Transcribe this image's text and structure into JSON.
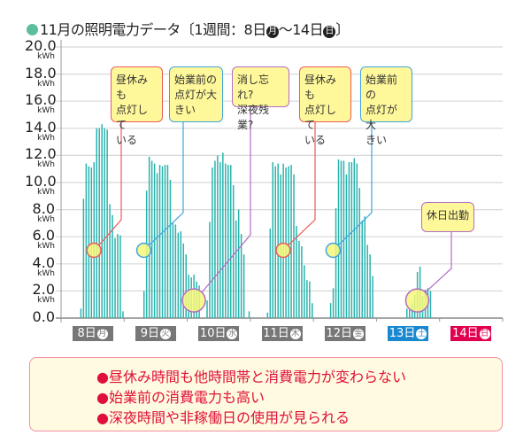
{
  "title": {
    "prefix": "11月の照明電力データ〔1週間：8日",
    "start_weekday": "月",
    "mid": "～14日",
    "end_weekday": "日",
    "suffix": "〕",
    "dot_color": "#5bbf9f"
  },
  "chart_data": {
    "type": "bar",
    "title": "11月の照明電力データ〔1週間：8日(月)～14日(日)〕",
    "ylabel": "",
    "yunit": "kWh",
    "ylim": [
      0,
      20
    ],
    "yticks": [
      "0.0",
      "2.0",
      "4.0",
      "6.0",
      "8.0",
      "10.0",
      "12.0",
      "14.0",
      "16.0",
      "18.0",
      "20.0"
    ],
    "grid": true,
    "bar_color": "#2ab3ad",
    "x_granularity": "hourly (24 bars per day)",
    "days": [
      {
        "label": "8日",
        "weekday": "月",
        "color": "#777777",
        "values": [
          0,
          0,
          0,
          0,
          0,
          0,
          0,
          0.7,
          8.8,
          11.4,
          11.2,
          11.1,
          11.5,
          14.0,
          14.0,
          14.3,
          14.0,
          13.9,
          8.4,
          7.6,
          5.9,
          6.2,
          6.1,
          0.5
        ]
      },
      {
        "label": "9日",
        "weekday": "火",
        "color": "#777777",
        "values": [
          0,
          0,
          0,
          0,
          0,
          0,
          0,
          2.0,
          9.4,
          11.9,
          11.6,
          11.4,
          10.7,
          11.3,
          11.2,
          11.3,
          11.3,
          10.2,
          7.0,
          6.9,
          6.3,
          6.4,
          5.5,
          4.7
        ]
      },
      {
        "label": "10日",
        "weekday": "水",
        "color": "#777777",
        "values": [
          3.2,
          3.0,
          3.2,
          2.7,
          2.4,
          0,
          0,
          1.3,
          7.1,
          11.1,
          11.6,
          12.0,
          11.5,
          12.2,
          11.4,
          11.3,
          11.3,
          9.8,
          7.2,
          8.0,
          6.2,
          4.7,
          0,
          0.5
        ]
      },
      {
        "label": "11日",
        "weekday": "木",
        "color": "#777777",
        "values": [
          0,
          0,
          0,
          0,
          0,
          0,
          0.4,
          6.6,
          11.5,
          11.2,
          11.4,
          10.6,
          11.4,
          11.1,
          11.2,
          11.3,
          10.6,
          6.8,
          5.7,
          5.3,
          3.9,
          2.8,
          2.7,
          1.1
        ]
      },
      {
        "label": "12日",
        "weekday": "金",
        "color": "#777777",
        "values": [
          0,
          0,
          0,
          0,
          0,
          0,
          1.1,
          2.2,
          8.1,
          11.7,
          11.6,
          11.6,
          10.6,
          11.5,
          11.5,
          11.8,
          11.4,
          9.6,
          7.2,
          7.5,
          5.4,
          4.7,
          3.1,
          0
        ]
      },
      {
        "label": "13日",
        "weekday": "土",
        "color": "#1a88d0",
        "values": [
          0,
          0,
          0,
          0,
          0,
          0,
          0,
          0,
          0,
          0,
          0,
          0.7,
          0.6,
          1.1,
          1.7,
          3.4,
          3.8,
          1.6,
          2.1,
          2.2,
          2.0,
          0,
          0,
          0
        ]
      },
      {
        "label": "14日",
        "weekday": "日",
        "color": "#e0004f",
        "values": [
          0,
          0,
          0,
          0,
          0,
          0,
          0,
          0,
          0,
          0,
          0,
          0,
          0,
          0,
          0,
          0,
          0,
          0,
          0,
          0,
          0,
          0,
          0,
          0
        ]
      }
    ],
    "annotations": [
      {
        "text": "昼休みも\n点灯して\nいる",
        "color": "#ee5a5a",
        "day": 0,
        "hour": 12,
        "value": 5.0
      },
      {
        "text": "始業前の\n点灯が大\nきい",
        "color": "#3fa4e0",
        "day": 1,
        "hour": 7,
        "value": 5.0
      },
      {
        "text": "消し忘れ?\n深夜残業?",
        "color": "#b36cc4",
        "day": 2,
        "hour": 2,
        "value": 1.3
      },
      {
        "text": "昼休みも\n点灯して\nいる",
        "color": "#ee5a5a",
        "day": 3,
        "hour": 12,
        "value": 5.0
      },
      {
        "text": "始業前の\n点灯が大\nきい",
        "color": "#3fa4e0",
        "day": 4,
        "hour": 7,
        "value": 5.0
      },
      {
        "text": "休日出勤",
        "color": "#b36cc4",
        "day": 5,
        "hour": 15,
        "value": 1.3
      }
    ]
  },
  "summary": {
    "lines": [
      "●昼休み時間も他時間帯と消費電力が変わらない",
      "●始業前の消費電力も高い",
      "●深夜時間や非稼働日の使用が見られる"
    ],
    "text_color": "#e0103a",
    "border_color": "#f291a8"
  }
}
